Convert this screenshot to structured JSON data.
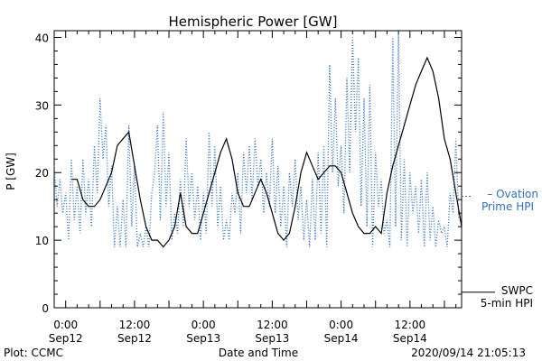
{
  "chart_data": {
    "type": "line",
    "title": "Hemispheric Power [GW]",
    "ylabel": "P [GW]",
    "xlabel": "Date and Time",
    "ylim": [
      0,
      41
    ],
    "yticks": [
      0,
      10,
      20,
      30,
      40
    ],
    "x_unit": "hours since 2020-09-12 00:00 UT",
    "xlim": [
      -2,
      69
    ],
    "xticks": [
      {
        "x": 0,
        "time": "0:00",
        "date": "Sep12"
      },
      {
        "x": 12,
        "time": "12:00",
        "date": "Sep12"
      },
      {
        "x": 24,
        "time": "0:00",
        "date": "Sep13"
      },
      {
        "x": 36,
        "time": "12:00",
        "date": "Sep13"
      },
      {
        "x": 48,
        "time": "0:00",
        "date": "Sep14"
      },
      {
        "x": 60,
        "time": "12:00",
        "date": "Sep14"
      }
    ],
    "series": [
      {
        "name": "Ovation Prime HPI",
        "legend_lines": [
          "– Ovation",
          "Prime HPI"
        ],
        "color": "#2f6fbf",
        "style": "dotted",
        "points": [
          [
            -2,
            21
          ],
          [
            -1.5,
            15
          ],
          [
            -1,
            19
          ],
          [
            -0.5,
            14
          ],
          [
            0,
            17
          ],
          [
            0.5,
            10
          ],
          [
            1,
            22
          ],
          [
            1.5,
            13
          ],
          [
            2,
            18
          ],
          [
            2.5,
            11
          ],
          [
            3,
            22
          ],
          [
            3.5,
            14
          ],
          [
            4,
            19
          ],
          [
            4.5,
            12
          ],
          [
            5,
            24
          ],
          [
            5.5,
            17
          ],
          [
            6,
            31
          ],
          [
            6.5,
            22
          ],
          [
            7,
            27
          ],
          [
            7.5,
            15
          ],
          [
            8,
            21
          ],
          [
            8.5,
            9
          ],
          [
            9,
            15
          ],
          [
            9.5,
            9
          ],
          [
            10,
            16
          ],
          [
            10.5,
            9
          ],
          [
            11,
            27
          ],
          [
            11.5,
            12
          ],
          [
            12,
            21
          ],
          [
            12.5,
            9
          ],
          [
            13,
            11
          ],
          [
            13.5,
            9
          ],
          [
            14,
            12
          ],
          [
            14.5,
            9
          ],
          [
            15,
            17
          ],
          [
            15.5,
            20
          ],
          [
            16,
            27
          ],
          [
            16.5,
            13
          ],
          [
            17,
            29
          ],
          [
            17.5,
            15
          ],
          [
            18,
            23
          ],
          [
            18.5,
            10
          ],
          [
            19,
            14
          ],
          [
            19.5,
            11
          ],
          [
            20,
            19
          ],
          [
            20.5,
            12
          ],
          [
            21,
            25
          ],
          [
            21.5,
            15
          ],
          [
            22,
            20
          ],
          [
            22.5,
            13
          ],
          [
            23,
            18
          ],
          [
            23.5,
            10
          ],
          [
            24,
            17
          ],
          [
            24.5,
            11
          ],
          [
            25,
            26
          ],
          [
            25.5,
            15
          ],
          [
            26,
            24
          ],
          [
            26.5,
            12
          ],
          [
            27,
            18
          ],
          [
            27.5,
            10
          ],
          [
            28,
            13
          ],
          [
            28.5,
            10
          ],
          [
            29,
            17
          ],
          [
            29.5,
            14
          ],
          [
            30,
            20
          ],
          [
            30.5,
            11
          ],
          [
            31,
            23
          ],
          [
            31.5,
            17
          ],
          [
            32,
            24
          ],
          [
            32.5,
            16
          ],
          [
            33,
            25
          ],
          [
            33.5,
            18
          ],
          [
            34,
            22
          ],
          [
            34.5,
            14
          ],
          [
            35,
            20
          ],
          [
            35.5,
            15
          ],
          [
            36,
            25
          ],
          [
            36.5,
            14
          ],
          [
            37,
            21
          ],
          [
            37.5,
            12
          ],
          [
            38,
            18
          ],
          [
            38.5,
            9
          ],
          [
            39,
            20
          ],
          [
            39.5,
            15
          ],
          [
            40,
            22
          ],
          [
            40.5,
            13
          ],
          [
            41,
            18
          ],
          [
            41.5,
            10
          ],
          [
            42,
            16
          ],
          [
            42.5,
            9
          ],
          [
            43,
            19
          ],
          [
            43.5,
            10
          ],
          [
            44,
            23
          ],
          [
            44.5,
            11
          ],
          [
            45,
            24
          ],
          [
            45.5,
            9
          ],
          [
            46,
            36
          ],
          [
            46.5,
            20
          ],
          [
            47,
            31
          ],
          [
            47.5,
            18
          ],
          [
            48,
            24
          ],
          [
            48.5,
            14
          ],
          [
            49,
            34
          ],
          [
            49.5,
            20
          ],
          [
            50,
            40
          ],
          [
            50.5,
            26
          ],
          [
            51,
            37
          ],
          [
            51.5,
            15
          ],
          [
            52,
            31
          ],
          [
            52.5,
            12
          ],
          [
            53,
            33
          ],
          [
            53.5,
            9
          ],
          [
            54,
            23
          ],
          [
            54.5,
            15
          ],
          [
            55,
            19
          ],
          [
            55.5,
            11
          ],
          [
            56,
            13
          ],
          [
            56.5,
            9
          ],
          [
            57,
            40
          ],
          [
            57.5,
            12
          ],
          [
            58,
            41
          ],
          [
            58.5,
            10
          ],
          [
            59,
            22
          ],
          [
            59.5,
            9
          ],
          [
            60,
            20
          ],
          [
            60.5,
            14
          ],
          [
            61,
            18
          ],
          [
            61.5,
            11
          ],
          [
            62,
            19
          ],
          [
            62.5,
            9
          ],
          [
            63,
            20
          ],
          [
            63.5,
            10
          ],
          [
            64,
            15
          ],
          [
            64.5,
            9
          ],
          [
            65,
            13
          ],
          [
            65.5,
            11
          ],
          [
            66,
            12
          ],
          [
            66.5,
            9
          ],
          [
            67,
            17
          ],
          [
            67.5,
            14
          ],
          [
            68,
            25
          ],
          [
            68.5,
            13
          ]
        ]
      },
      {
        "name": "SWPC 5-min HPI",
        "legend_lines": [
          "SWPC",
          "5-min HPI"
        ],
        "color": "#000000",
        "style": "solid",
        "points": [
          [
            1,
            19
          ],
          [
            2,
            19
          ],
          [
            3,
            16
          ],
          [
            4,
            15
          ],
          [
            5,
            15
          ],
          [
            6,
            16
          ],
          [
            7,
            18
          ],
          [
            8,
            20
          ],
          [
            9,
            24
          ],
          [
            10,
            25
          ],
          [
            11,
            26
          ],
          [
            12,
            21
          ],
          [
            13,
            16
          ],
          [
            14,
            12
          ],
          [
            15,
            10
          ],
          [
            16,
            10
          ],
          [
            17,
            9
          ],
          [
            18,
            10
          ],
          [
            19,
            12
          ],
          [
            20,
            17
          ],
          [
            21,
            12
          ],
          [
            22,
            11
          ],
          [
            23,
            11
          ],
          [
            24,
            14
          ],
          [
            25,
            17
          ],
          [
            26,
            20
          ],
          [
            27,
            23
          ],
          [
            28,
            25
          ],
          [
            29,
            22
          ],
          [
            30,
            17
          ],
          [
            31,
            15
          ],
          [
            32,
            15
          ],
          [
            33,
            17
          ],
          [
            34,
            19
          ],
          [
            35,
            17
          ],
          [
            36,
            14
          ],
          [
            37,
            11
          ],
          [
            38,
            10
          ],
          [
            39,
            11
          ],
          [
            40,
            15
          ],
          [
            41,
            20
          ],
          [
            42,
            23
          ],
          [
            43,
            21
          ],
          [
            44,
            19
          ],
          [
            45,
            20
          ],
          [
            46,
            21
          ],
          [
            47,
            21
          ],
          [
            48,
            20
          ],
          [
            49,
            17
          ],
          [
            50,
            14
          ],
          [
            51,
            12
          ],
          [
            52,
            11
          ],
          [
            53,
            11
          ],
          [
            54,
            12
          ],
          [
            55,
            11
          ],
          [
            56,
            17
          ],
          [
            57,
            21
          ],
          [
            58,
            24
          ],
          [
            59,
            27
          ],
          [
            60,
            30
          ],
          [
            61,
            33
          ],
          [
            62,
            35
          ],
          [
            63,
            37
          ],
          [
            64,
            35
          ],
          [
            65,
            31
          ],
          [
            66,
            25
          ],
          [
            67,
            22
          ],
          [
            68,
            17
          ],
          [
            69,
            12
          ]
        ]
      }
    ]
  },
  "footer": {
    "plot_credit": "Plot: CCMC",
    "timestamp": "2020/09/14 21:05:13"
  }
}
